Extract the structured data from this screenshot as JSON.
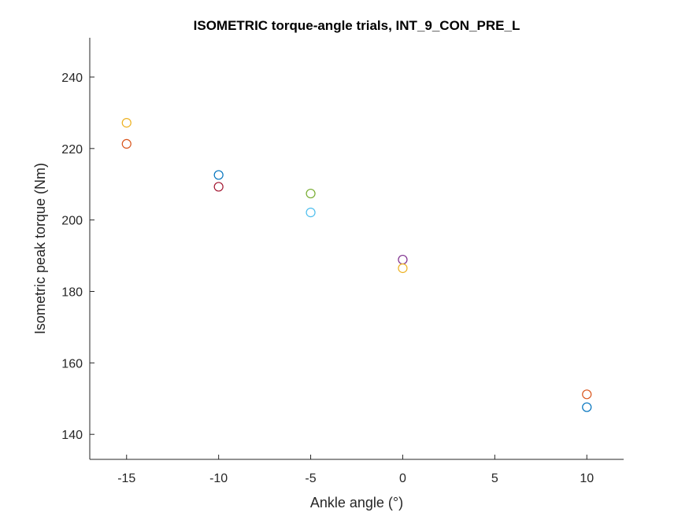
{
  "chart_data": {
    "type": "scatter",
    "title": "ISOMETRIC torque-angle trials, INT_9_CON_PRE_L",
    "xlabel": "Ankle angle (°)",
    "ylabel": "Isometric peak torque (Nm)",
    "xlim": [
      -17,
      12
    ],
    "ylim": [
      133,
      251
    ],
    "xticks": [
      -15,
      -10,
      -5,
      0,
      5,
      10
    ],
    "yticks": [
      140,
      160,
      180,
      200,
      220,
      240
    ],
    "grid": false,
    "box": false,
    "points": [
      {
        "x": -15,
        "y": 227.2,
        "color": "#EDB120"
      },
      {
        "x": -15,
        "y": 221.3,
        "color": "#D95319"
      },
      {
        "x": -10,
        "y": 212.6,
        "color": "#0072BD"
      },
      {
        "x": -10,
        "y": 209.3,
        "color": "#A2142F"
      },
      {
        "x": -5,
        "y": 207.4,
        "color": "#77AC30"
      },
      {
        "x": -5,
        "y": 202.1,
        "color": "#4DBEEE"
      },
      {
        "x": 0,
        "y": 188.9,
        "color": "#7E2F8E"
      },
      {
        "x": 0,
        "y": 186.5,
        "color": "#EDB120"
      },
      {
        "x": 10,
        "y": 151.2,
        "color": "#D95319"
      },
      {
        "x": 10,
        "y": 147.6,
        "color": "#0072BD"
      }
    ]
  }
}
